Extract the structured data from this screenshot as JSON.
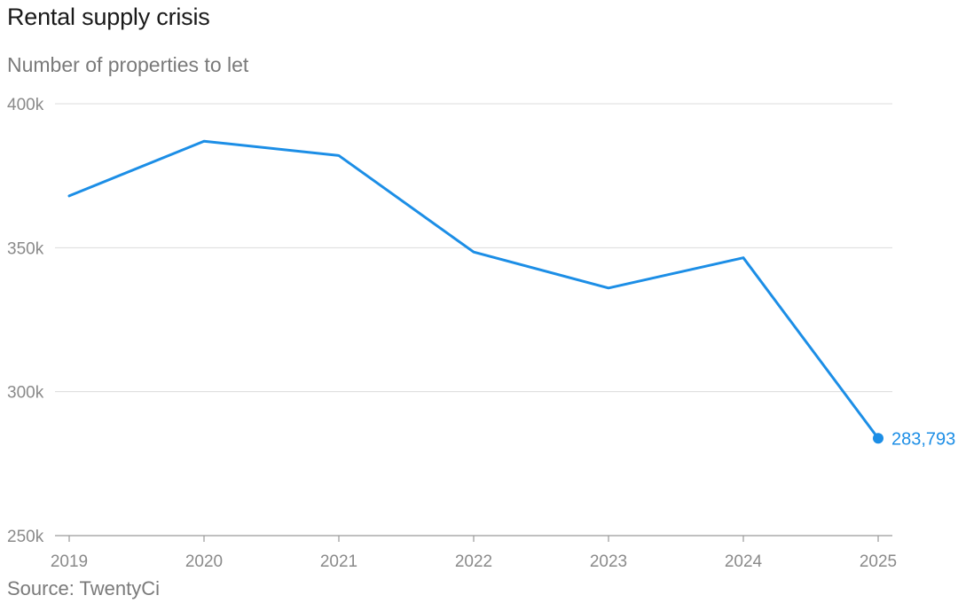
{
  "title": "Rental supply crisis",
  "subtitle": "Number of properties to let",
  "source": "Source: TwentyCi",
  "colors": {
    "line": "#1c8ee6",
    "grid": "#dcdcdc",
    "axis_text": "#8a8a8a"
  },
  "chart_data": {
    "type": "line",
    "title": "Rental supply crisis",
    "subtitle": "Number of properties to let",
    "xlabel": "",
    "ylabel": "",
    "x": [
      "2019",
      "2020",
      "2021",
      "2022",
      "2023",
      "2024",
      "2025"
    ],
    "series": [
      {
        "values": [
          368000,
          387000,
          382000,
          348500,
          336000,
          346500,
          283793
        ]
      }
    ],
    "ylim": [
      250000,
      400000
    ],
    "yticks": [
      250000,
      300000,
      350000,
      400000
    ],
    "ytick_labels": [
      "250k",
      "300k",
      "350k",
      "400k"
    ],
    "grid": true,
    "end_label": "283,793",
    "source": "Source: TwentyCi"
  }
}
